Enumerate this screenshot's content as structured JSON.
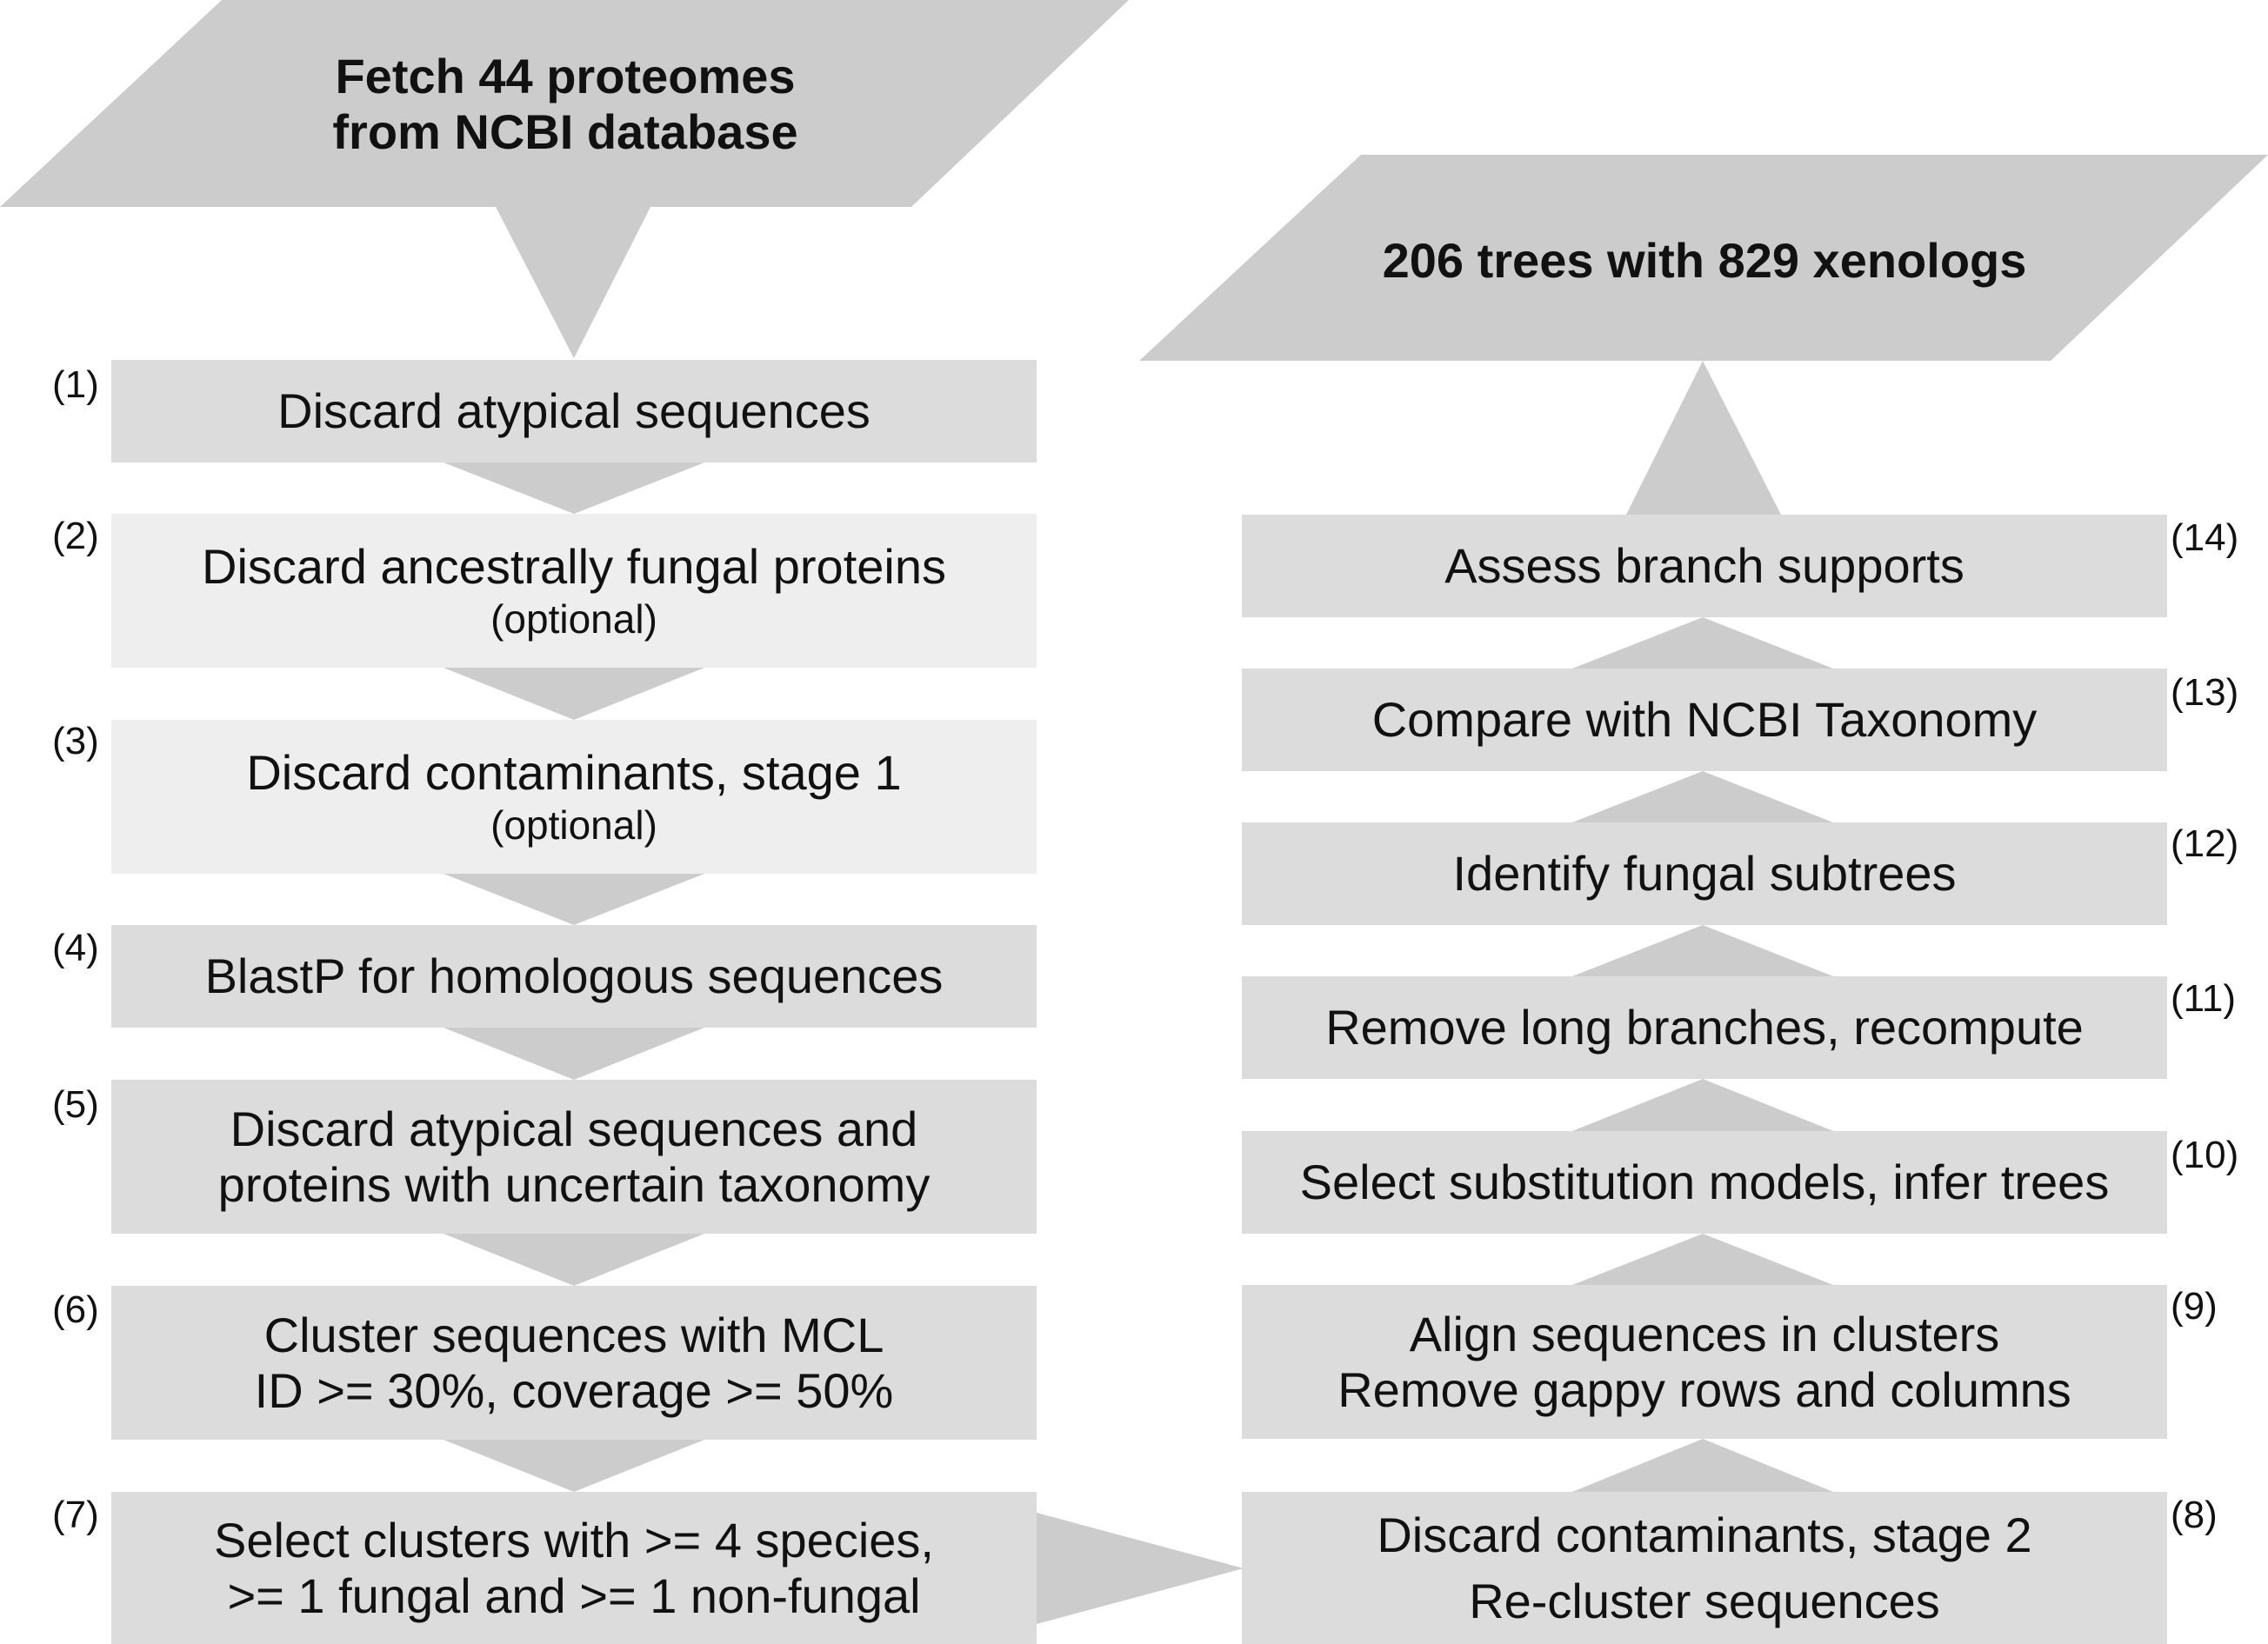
{
  "start": {
    "line1": "Fetch 44 proteomes",
    "line2": "from NCBI database"
  },
  "end": {
    "text": "206 trees with 829 xenologs"
  },
  "steps": [
    {
      "num": "(1)",
      "line1": "Discard atypical sequences"
    },
    {
      "num": "(2)",
      "line1": "Discard ancestrally fungal proteins",
      "note": "(optional)"
    },
    {
      "num": "(3)",
      "line1": "Discard contaminants, stage 1",
      "note": "(optional)"
    },
    {
      "num": "(4)",
      "line1": "BlastP for homologous sequences"
    },
    {
      "num": "(5)",
      "line1": "Discard atypical sequences and",
      "line2": "proteins with uncertain taxonomy"
    },
    {
      "num": "(6)",
      "line1": "Cluster sequences with MCL",
      "line2": "ID >= 30%, coverage >= 50%"
    },
    {
      "num": "(7)",
      "line1": "Select clusters with >= 4 species,",
      "line2": ">= 1 fungal and >= 1 non-fungal"
    },
    {
      "num": "(8)",
      "line1": "Discard contaminants, stage 2",
      "line2": "Re-cluster sequences"
    },
    {
      "num": "(9)",
      "line1": "Align sequences in clusters",
      "line2": "Remove gappy rows and columns"
    },
    {
      "num": "(10)",
      "line1": "Select substitution models, infer trees"
    },
    {
      "num": "(11)",
      "line1": "Remove long branches, recompute"
    },
    {
      "num": "(12)",
      "line1": "Identify fungal subtrees"
    },
    {
      "num": "(13)",
      "line1": "Compare with NCBI Taxonomy"
    },
    {
      "num": "(14)",
      "line1": "Assess branch supports"
    }
  ]
}
